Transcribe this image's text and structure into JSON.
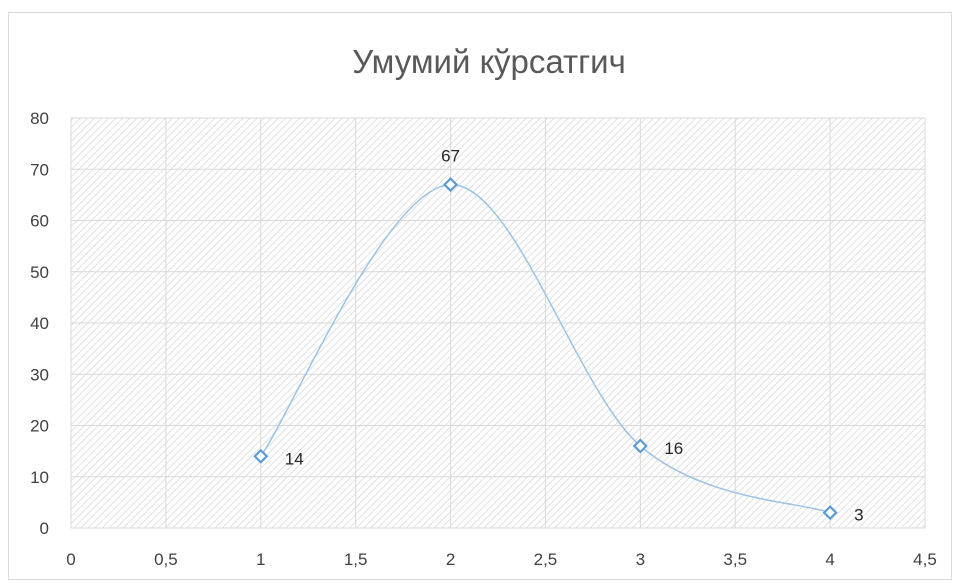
{
  "chart_data": {
    "type": "scatter",
    "title": "Умумий кўрсатгич",
    "xlabel": "",
    "ylabel": "",
    "xlim": [
      0,
      4.5
    ],
    "ylim": [
      0,
      80
    ],
    "x_ticks": [
      "0",
      "0,5",
      "1",
      "1,5",
      "2",
      "2,5",
      "3",
      "3,5",
      "4",
      "4,5"
    ],
    "y_ticks": [
      "0",
      "10",
      "20",
      "30",
      "40",
      "50",
      "60",
      "70",
      "80"
    ],
    "grid": true,
    "legend": "none",
    "smoothed_line": true,
    "series": [
      {
        "points": [
          {
            "x": 1,
            "y": 14,
            "label": "14"
          },
          {
            "x": 2,
            "y": 67,
            "label": "67"
          },
          {
            "x": 3,
            "y": 16,
            "label": "16"
          },
          {
            "x": 4,
            "y": 3,
            "label": "3"
          }
        ],
        "color": "#9dc3e6",
        "marker_color": "#5b9bd5",
        "marker": "diamond"
      }
    ],
    "plot_background": "hatched",
    "hatch_color": "#d9d9d9",
    "grid_color": "#d9d9d9"
  }
}
